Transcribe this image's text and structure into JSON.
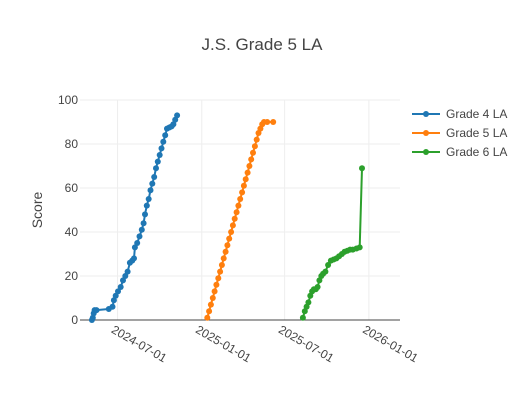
{
  "chart_data": {
    "type": "line",
    "title": "J.S. Grade 5 LA",
    "xlabel": "",
    "ylabel": "Score",
    "x_type": "date",
    "xlim": [
      "2024-04-10",
      "2026-03-10"
    ],
    "ylim": [
      0,
      100
    ],
    "y_ticks": [
      0,
      20,
      40,
      60,
      80,
      100
    ],
    "x_ticks": [
      "2024-07-01",
      "2025-01-01",
      "2025-07-01",
      "2026-01-01"
    ],
    "grid": true,
    "legend_position": "top-right",
    "series": [
      {
        "name": "Grade 4 LA",
        "color": "#1f77b4",
        "points": [
          [
            "2024-05-06",
            0
          ],
          [
            "2024-05-08",
            1
          ],
          [
            "2024-05-10",
            3
          ],
          [
            "2024-05-12",
            4.5
          ],
          [
            "2024-05-16",
            4.5
          ],
          [
            "2024-06-12",
            5
          ],
          [
            "2024-06-20",
            6
          ],
          [
            "2024-06-23",
            9
          ],
          [
            "2024-06-27",
            11
          ],
          [
            "2024-07-02",
            13
          ],
          [
            "2024-07-08",
            15
          ],
          [
            "2024-07-13",
            18
          ],
          [
            "2024-07-18",
            20
          ],
          [
            "2024-07-23",
            22
          ],
          [
            "2024-07-28",
            26
          ],
          [
            "2024-08-02",
            27
          ],
          [
            "2024-08-06",
            28
          ],
          [
            "2024-08-08",
            33
          ],
          [
            "2024-08-13",
            35
          ],
          [
            "2024-08-18",
            38
          ],
          [
            "2024-08-23",
            41
          ],
          [
            "2024-08-27",
            44
          ],
          [
            "2024-08-30",
            48
          ],
          [
            "2024-09-03",
            52
          ],
          [
            "2024-09-07",
            55
          ],
          [
            "2024-09-11",
            59
          ],
          [
            "2024-09-15",
            62
          ],
          [
            "2024-09-19",
            65
          ],
          [
            "2024-09-23",
            69
          ],
          [
            "2024-09-27",
            72
          ],
          [
            "2024-10-01",
            75
          ],
          [
            "2024-10-05",
            78
          ],
          [
            "2024-10-09",
            81
          ],
          [
            "2024-10-13",
            84
          ],
          [
            "2024-10-17",
            87
          ],
          [
            "2024-10-22",
            87.5
          ],
          [
            "2024-10-27",
            88
          ],
          [
            "2024-10-31",
            89
          ],
          [
            "2024-11-04",
            91
          ],
          [
            "2024-11-08",
            93
          ]
        ]
      },
      {
        "name": "Grade 5 LA",
        "color": "#ff7f0e",
        "points": [
          [
            "2025-01-13",
            1
          ],
          [
            "2025-01-17",
            4
          ],
          [
            "2025-01-21",
            7
          ],
          [
            "2025-01-25",
            10
          ],
          [
            "2025-01-29",
            13
          ],
          [
            "2025-02-02",
            16
          ],
          [
            "2025-02-06",
            19
          ],
          [
            "2025-02-10",
            22
          ],
          [
            "2025-02-14",
            25
          ],
          [
            "2025-02-18",
            28
          ],
          [
            "2025-02-22",
            31
          ],
          [
            "2025-02-26",
            34
          ],
          [
            "2025-03-02",
            37
          ],
          [
            "2025-03-06",
            40
          ],
          [
            "2025-03-10",
            43
          ],
          [
            "2025-03-14",
            46
          ],
          [
            "2025-03-18",
            49
          ],
          [
            "2025-03-22",
            52
          ],
          [
            "2025-03-26",
            55
          ],
          [
            "2025-03-30",
            58
          ],
          [
            "2025-04-03",
            61
          ],
          [
            "2025-04-07",
            64
          ],
          [
            "2025-04-11",
            67
          ],
          [
            "2025-04-15",
            70
          ],
          [
            "2025-04-19",
            73
          ],
          [
            "2025-04-23",
            76
          ],
          [
            "2025-04-27",
            79
          ],
          [
            "2025-05-01",
            82
          ],
          [
            "2025-05-05",
            85
          ],
          [
            "2025-05-09",
            87
          ],
          [
            "2025-05-13",
            89
          ],
          [
            "2025-05-17",
            90
          ],
          [
            "2025-05-24",
            90
          ],
          [
            "2025-06-06",
            90
          ]
        ]
      },
      {
        "name": "Grade 6 LA",
        "color": "#2ca02c",
        "points": [
          [
            "2025-08-10",
            1
          ],
          [
            "2025-08-14",
            4
          ],
          [
            "2025-08-18",
            6
          ],
          [
            "2025-08-22",
            8
          ],
          [
            "2025-08-26",
            11
          ],
          [
            "2025-08-30",
            13
          ],
          [
            "2025-09-03",
            14
          ],
          [
            "2025-09-07",
            14
          ],
          [
            "2025-09-11",
            15
          ],
          [
            "2025-09-15",
            18
          ],
          [
            "2025-09-19",
            20
          ],
          [
            "2025-09-23",
            21
          ],
          [
            "2025-09-28",
            22
          ],
          [
            "2025-10-04",
            25
          ],
          [
            "2025-10-10",
            27
          ],
          [
            "2025-10-16",
            27.5
          ],
          [
            "2025-10-22",
            28
          ],
          [
            "2025-10-28",
            29
          ],
          [
            "2025-11-03",
            30
          ],
          [
            "2025-11-09",
            31
          ],
          [
            "2025-11-15",
            31.5
          ],
          [
            "2025-11-21",
            32
          ],
          [
            "2025-11-27",
            32
          ],
          [
            "2025-12-05",
            32.5
          ],
          [
            "2025-12-12",
            33
          ],
          [
            "2025-12-17",
            69
          ]
        ]
      }
    ]
  }
}
